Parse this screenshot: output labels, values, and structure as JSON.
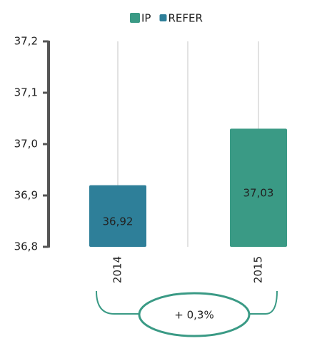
{
  "chart_data": {
    "type": "bar",
    "categories": [
      "2014",
      "2015"
    ],
    "series": [
      {
        "name": "IP",
        "color": "#3a9a85",
        "values": [
          null,
          37.03
        ],
        "value_labels": [
          null,
          "37,03"
        ]
      },
      {
        "name": "REFER",
        "color": "#2e7f99",
        "values": [
          36.92,
          null
        ],
        "value_labels": [
          "36,92",
          null
        ]
      }
    ],
    "ylim": [
      36.8,
      37.2
    ],
    "yticks": [
      {
        "value": 36.8,
        "label": "36,8"
      },
      {
        "value": 36.9,
        "label": "36,9"
      },
      {
        "value": 37.0,
        "label": "37,0"
      },
      {
        "value": 37.1,
        "label": "37,1"
      },
      {
        "value": 37.2,
        "label": "37,2"
      }
    ],
    "legend": "top",
    "annotation": "+ 0,3%"
  }
}
